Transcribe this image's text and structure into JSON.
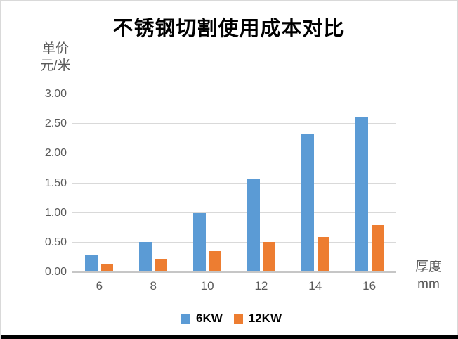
{
  "chart_data": {
    "type": "bar",
    "title": "不锈钢切割使用成本对比",
    "y_axis_unit_line1": "单价",
    "y_axis_unit_line2": "元/米",
    "x_axis_unit_line1": "厚度",
    "x_axis_unit_line2": "mm",
    "categories": [
      "6",
      "8",
      "10",
      "12",
      "14",
      "16"
    ],
    "series": [
      {
        "name": "6KW",
        "color": "#5B9BD5",
        "values": [
          0.28,
          0.5,
          0.99,
          1.56,
          2.32,
          2.61
        ]
      },
      {
        "name": "12KW",
        "color": "#ED7D31",
        "values": [
          0.13,
          0.21,
          0.34,
          0.5,
          0.58,
          0.78
        ]
      }
    ],
    "ylim": [
      0,
      3.0
    ],
    "ytick_step": 0.5,
    "ytick_labels": [
      "0.00",
      "0.50",
      "1.00",
      "1.50",
      "2.00",
      "2.50",
      "3.00"
    ],
    "grid": true,
    "legend_position": "bottom",
    "colors": {
      "grid": "#D9D9D9",
      "axis_line": "#C6C6C6",
      "tick_text": "#595959",
      "title_text": "#000000",
      "legend_text": "#000000",
      "background": "#FFFFFF",
      "bottom_edge_bar": "#000000"
    }
  }
}
